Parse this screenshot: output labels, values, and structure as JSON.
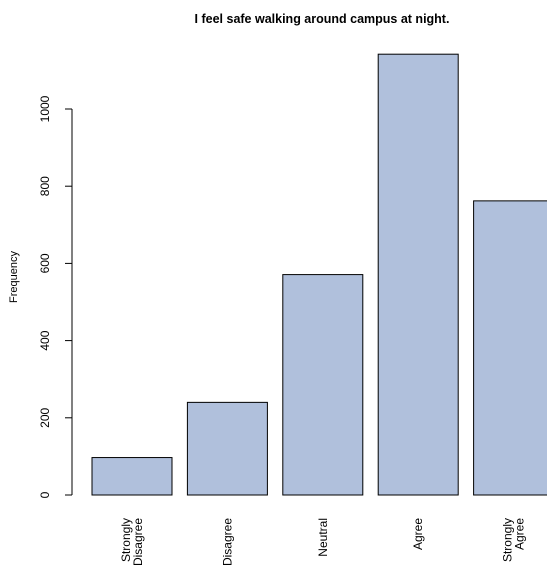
{
  "chart_data": {
    "type": "bar",
    "title": "I feel safe walking around campus at night.",
    "xlabel": "",
    "ylabel": "Frequency",
    "categories": [
      [
        "Strongly",
        "Disagree"
      ],
      [
        "Disagree"
      ],
      [
        "Neutral"
      ],
      [
        "Agree"
      ],
      [
        "Strongly",
        "Agree"
      ]
    ],
    "values": [
      97,
      240,
      571,
      1142,
      762
    ],
    "yticks": [
      0,
      200,
      400,
      600,
      800,
      1000
    ],
    "ylim": [
      0,
      1142
    ],
    "grid": false,
    "bar_color": "#b0c0dc",
    "edge_color": "#000000"
  }
}
